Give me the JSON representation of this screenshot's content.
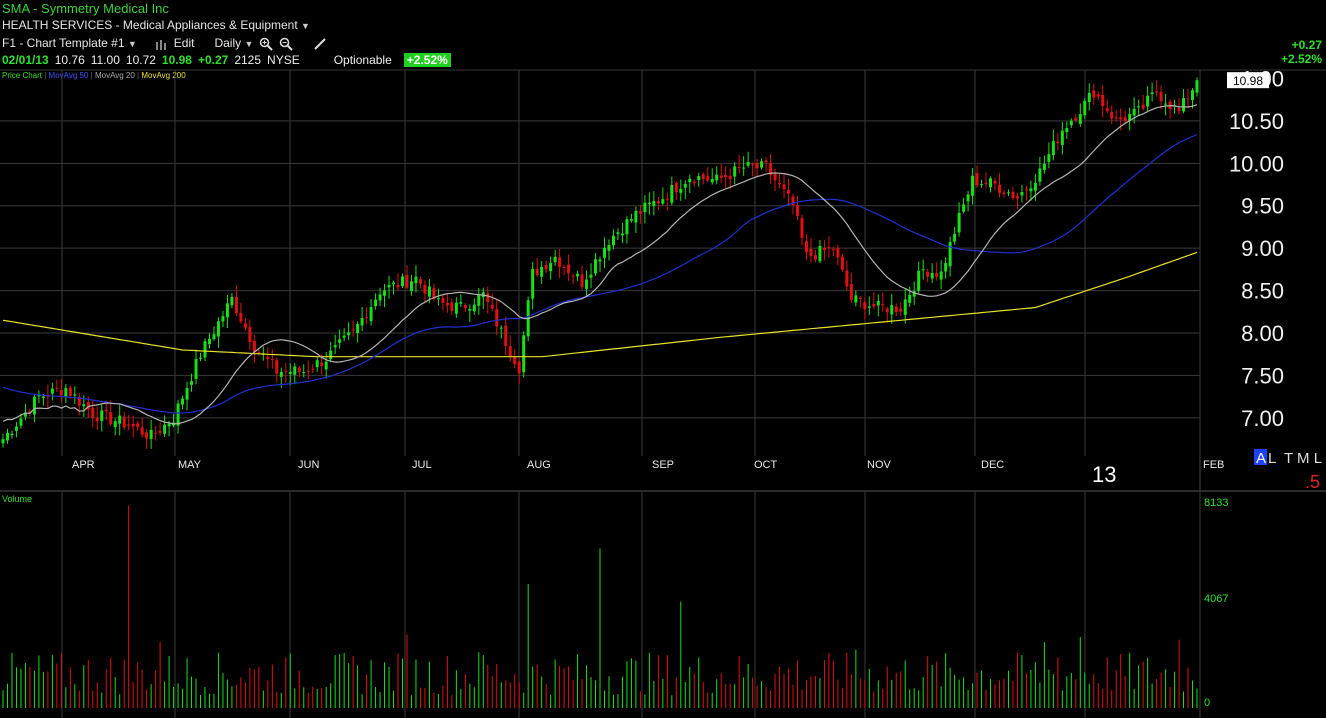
{
  "header": {
    "ticker": "SMA",
    "company": "Symmetry Medical Inc",
    "sector": "HEALTH SERVICES - Medical Appliances & Equipment",
    "template": "F1 - Chart Template #1",
    "edit_label": "Edit",
    "period_label": "Daily",
    "date": "02/01/13",
    "open": "10.76",
    "high": "11.00",
    "low": "10.72",
    "close": "10.98",
    "change": "+0.27",
    "volume": "2125",
    "exchange": "NYSE",
    "optionable": "Optionable",
    "pct_change": "+2.52%",
    "right_change": "+0.27",
    "right_pct": "+2.52%",
    "price_tag": "10.98",
    "cut_label": "1.00"
  },
  "legend": {
    "price_chart": "Price Chart",
    "ma50": "MovAvg 50",
    "ma20": "MovAvg 20",
    "ma200": "MovAvg 200"
  },
  "corner": {
    "year": "13",
    "A": "A",
    "L": "L",
    "TML": "T M L",
    "five": ".5"
  },
  "colors": {
    "up": "#18e018",
    "down": "#e01010",
    "ma20": "#b4b4b4",
    "ma50": "#2030d0",
    "ma200": "#e8e02a",
    "grid": "#3a3a3a"
  },
  "chart_data": {
    "type": "candlestick",
    "price_axis": {
      "ticks": [
        "7.00",
        "7.50",
        "8.00",
        "8.50",
        "9.00",
        "9.50",
        "10.00",
        "10.50"
      ],
      "range": [
        6.55,
        11.1
      ]
    },
    "months": [
      "APR",
      "MAY",
      "JUN",
      "JUL",
      "AUG",
      "SEP",
      "OCT",
      "NOV",
      "DEC",
      "FEB"
    ],
    "close_anchors": [
      [
        0,
        6.75
      ],
      [
        8,
        7.25
      ],
      [
        14,
        7.35
      ],
      [
        20,
        7.05
      ],
      [
        28,
        6.92
      ],
      [
        33,
        6.78
      ],
      [
        38,
        7.0
      ],
      [
        44,
        7.75
      ],
      [
        51,
        8.4
      ],
      [
        56,
        7.85
      ],
      [
        61,
        7.55
      ],
      [
        67,
        7.55
      ],
      [
        72,
        7.7
      ],
      [
        78,
        8.0
      ],
      [
        84,
        8.5
      ],
      [
        92,
        8.65
      ],
      [
        97,
        8.35
      ],
      [
        102,
        8.3
      ],
      [
        107,
        8.45
      ],
      [
        112,
        7.9
      ],
      [
        115,
        7.6
      ],
      [
        118,
        8.7
      ],
      [
        123,
        8.9
      ],
      [
        129,
        8.6
      ],
      [
        135,
        9.1
      ],
      [
        141,
        9.4
      ],
      [
        147,
        9.6
      ],
      [
        153,
        9.85
      ],
      [
        159,
        9.8
      ],
      [
        165,
        9.95
      ],
      [
        170,
        9.95
      ],
      [
        176,
        9.5
      ],
      [
        179,
        8.9
      ],
      [
        185,
        9.0
      ],
      [
        189,
        8.4
      ],
      [
        195,
        8.3
      ],
      [
        200,
        8.3
      ],
      [
        205,
        8.75
      ],
      [
        209,
        8.7
      ],
      [
        212,
        9.2
      ],
      [
        216,
        9.8
      ],
      [
        221,
        9.75
      ],
      [
        226,
        9.6
      ],
      [
        231,
        9.9
      ],
      [
        236,
        10.4
      ],
      [
        241,
        10.7
      ],
      [
        243,
        10.85
      ],
      [
        248,
        10.5
      ],
      [
        253,
        10.6
      ],
      [
        257,
        10.85
      ],
      [
        262,
        10.6
      ],
      [
        266,
        10.98
      ]
    ],
    "ma200_anchors": [
      [
        0,
        8.15
      ],
      [
        40,
        7.8
      ],
      [
        70,
        7.72
      ],
      [
        120,
        7.72
      ],
      [
        160,
        7.95
      ],
      [
        200,
        8.15
      ],
      [
        230,
        8.3
      ],
      [
        250,
        8.65
      ],
      [
        266,
        8.95
      ]
    ],
    "volume_axis": {
      "ticks": [
        "8133",
        "4067",
        "0"
      ],
      "max": 8133
    },
    "volume_label": "Volume",
    "volume_spikes": [
      [
        28,
        8000
      ],
      [
        35,
        2600
      ],
      [
        90,
        2900
      ],
      [
        106,
        2200
      ],
      [
        117,
        4900
      ],
      [
        133,
        6300
      ],
      [
        151,
        4200
      ],
      [
        190,
        2300
      ],
      [
        232,
        2600
      ],
      [
        235,
        2000
      ],
      [
        240,
        2800
      ],
      [
        262,
        2700
      ]
    ]
  }
}
